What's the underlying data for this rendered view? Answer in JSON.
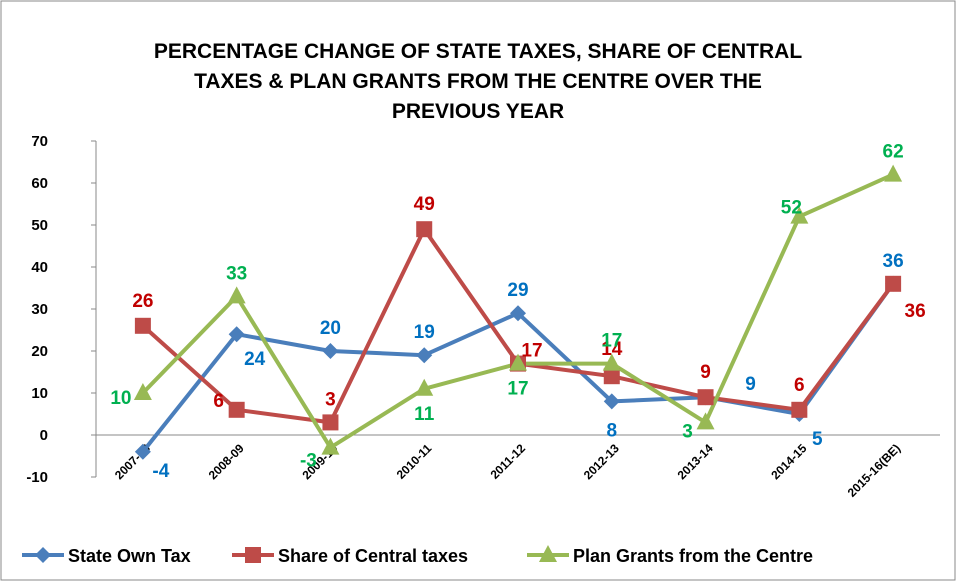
{
  "chart_data": {
    "type": "line",
    "title": [
      "PERCENTAGE CHANGE OF STATE TAXES, SHARE OF CENTRAL",
      "TAXES & PLAN GRANTS FROM THE CENTRE OVER THE",
      "PREVIOUS YEAR"
    ],
    "categories": [
      "2007-08",
      "2008-09",
      "2009-10",
      "2010-11",
      "2011-12",
      "2012-13",
      "2013-14",
      "2014-15",
      "2015-16(BE)"
    ],
    "series": [
      {
        "name": "State Own Tax",
        "color": "#4a7ebb",
        "label_color": "#0070c0",
        "marker": "diamond",
        "values": [
          -4,
          24,
          20,
          19,
          29,
          8,
          9,
          5,
          36
        ]
      },
      {
        "name": "Share of Central taxes",
        "color": "#be4b48",
        "label_color": "#c00000",
        "marker": "square",
        "values": [
          26,
          6,
          3,
          49,
          17,
          14,
          9,
          6,
          36
        ]
      },
      {
        "name": "Plan Grants from the Centre",
        "color": "#98b954",
        "label_color": "#00b050",
        "marker": "triangle",
        "values": [
          10,
          33,
          -3,
          11,
          17,
          17,
          3,
          52,
          62
        ]
      }
    ],
    "ylim": [
      -10,
      70
    ],
    "yticks": [
      -10,
      0,
      10,
      20,
      30,
      40,
      50,
      60,
      70
    ],
    "legend": "bottom"
  }
}
